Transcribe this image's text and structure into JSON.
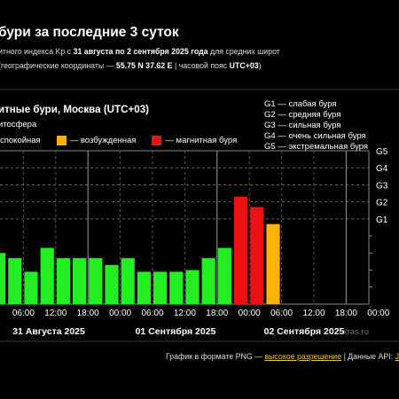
{
  "header": {
    "title": "бури за последние 3 суток",
    "line1_a": "итного индекса Kp с ",
    "line1_dates": "31 августа по 2 сентября 2025 года",
    "line1_b": " для средних широт",
    "line2_a": "(географические координаты — ",
    "line2_coords": "55.75 N 37.62 E",
    "line2_b": " | часовой пояс ",
    "line2_tz": "UTC+03",
    "line2_c": ")"
  },
  "chart_header": {
    "title": "итные бури, Москва (UTC+03)",
    "legend_title": "итосфера",
    "legend": [
      {
        "label": "спокойная",
        "color": "#22ee22",
        "show_swatch": false
      },
      {
        "label": "— возбужденная",
        "color": "#ffb300",
        "show_swatch": true
      },
      {
        "label": "— магнитная буря",
        "color": "#ee1111",
        "show_swatch": true
      }
    ]
  },
  "storm_levels": [
    "G1 — слабая буря",
    "G2 — средняя буря",
    "G3 — сильная буря",
    "G4 — очень сильная буря",
    "G5 — экстремальная буря"
  ],
  "chart_data": {
    "type": "bar",
    "y_levels": [
      "G5",
      "G4",
      "G3",
      "G2",
      "G1"
    ],
    "ylim": [
      0,
      9
    ],
    "x_tick_labels": [
      "06:00",
      "12:00",
      "18:00",
      "00:00",
      "06:00",
      "12:00",
      "18:00",
      "00:00",
      "06:00",
      "12:00",
      "18:00",
      "00:00"
    ],
    "day_labels": [
      "31 Августа 2025",
      "01 Сентября 2025",
      "02 Сентября 2025"
    ],
    "bars": [
      {
        "value": 3.0,
        "color": "#22ee22"
      },
      {
        "value": 2.7,
        "color": "#22ee22"
      },
      {
        "value": 1.9,
        "color": "#22ee22"
      },
      {
        "value": 3.3,
        "color": "#22ee22"
      },
      {
        "value": 2.7,
        "color": "#22ee22"
      },
      {
        "value": 2.7,
        "color": "#22ee22"
      },
      {
        "value": 2.7,
        "color": "#22ee22"
      },
      {
        "value": 2.3,
        "color": "#22ee22"
      },
      {
        "value": 2.7,
        "color": "#22ee22"
      },
      {
        "value": 1.9,
        "color": "#22ee22"
      },
      {
        "value": 1.9,
        "color": "#22ee22"
      },
      {
        "value": 1.9,
        "color": "#22ee22"
      },
      {
        "value": 2.0,
        "color": "#22ee22"
      },
      {
        "value": 2.7,
        "color": "#22ee22"
      },
      {
        "value": 3.3,
        "color": "#22ee22"
      },
      {
        "value": 6.3,
        "color": "#ee1111"
      },
      {
        "value": 5.7,
        "color": "#ee1111"
      },
      {
        "value": 4.7,
        "color": "#ffb300"
      }
    ],
    "watermark": "xras.ru"
  },
  "footer": {
    "text_a": "График в формате PNG — ",
    "link": "высокое разрешение",
    "text_b": "  |  Данные API: ",
    "api_link": "J"
  }
}
